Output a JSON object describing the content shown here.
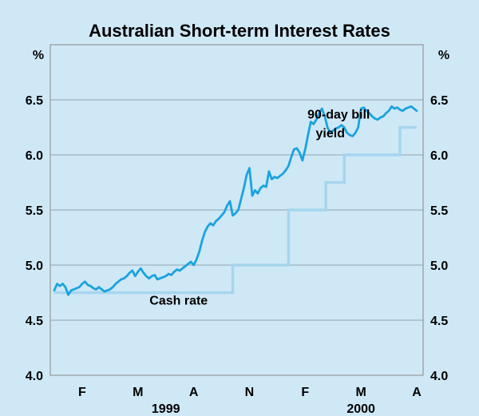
{
  "chart_data": {
    "type": "line",
    "title": "Australian Short-term Interest Rates",
    "ylabel_left": "%",
    "ylabel_right": "%",
    "ylim": [
      4.0,
      7.0
    ],
    "yticks": [
      4.0,
      4.5,
      5.0,
      5.5,
      6.0,
      6.5
    ],
    "ytick_labels": [
      "4.0",
      "4.5",
      "5.0",
      "5.5",
      "6.0",
      "6.5"
    ],
    "xlim": [
      0,
      6.5
    ],
    "xticks": [
      {
        "x": 0.5,
        "label": "F"
      },
      {
        "x": 1.5,
        "label": "M"
      },
      {
        "x": 2.5,
        "label": "A"
      },
      {
        "x": 3.5,
        "label": "N"
      },
      {
        "x": 4.5,
        "label": "F"
      },
      {
        "x": 5.5,
        "label": "M"
      },
      {
        "x": 6.5,
        "label": "A"
      }
    ],
    "year_labels": [
      {
        "x": 2.0,
        "label": "1999"
      },
      {
        "x": 5.5,
        "label": "2000"
      }
    ],
    "annotations": [
      {
        "text": "90-day bill",
        "x": 5.1,
        "y": 6.33
      },
      {
        "text": "yield",
        "x": 4.95,
        "y": 6.16
      },
      {
        "text": "Cash rate",
        "x": 2.23,
        "y": 4.64
      }
    ],
    "series": [
      {
        "name": "90-day bill yield",
        "color": "#1aa3e0",
        "x": [
          0.0,
          0.05,
          0.1,
          0.15,
          0.2,
          0.25,
          0.3,
          0.35,
          0.4,
          0.45,
          0.5,
          0.55,
          0.6,
          0.65,
          0.7,
          0.75,
          0.8,
          0.85,
          0.9,
          0.95,
          1.0,
          1.05,
          1.1,
          1.15,
          1.2,
          1.25,
          1.3,
          1.35,
          1.4,
          1.45,
          1.5,
          1.55,
          1.6,
          1.65,
          1.7,
          1.75,
          1.8,
          1.85,
          1.9,
          1.95,
          2.0,
          2.05,
          2.1,
          2.15,
          2.2,
          2.25,
          2.3,
          2.35,
          2.4,
          2.45,
          2.5,
          2.55,
          2.6,
          2.65,
          2.7,
          2.75,
          2.8,
          2.85,
          2.9,
          2.95,
          3.0,
          3.05,
          3.1,
          3.15,
          3.2,
          3.25,
          3.3,
          3.35,
          3.4,
          3.45,
          3.5,
          3.55,
          3.6,
          3.65,
          3.7,
          3.75,
          3.8,
          3.85,
          3.9,
          3.95,
          4.0,
          4.05,
          4.1,
          4.15,
          4.2,
          4.25,
          4.3,
          4.35,
          4.4,
          4.45,
          4.5,
          4.55,
          4.6,
          4.65,
          4.7,
          4.75,
          4.8,
          4.85,
          4.9,
          4.95,
          5.0,
          5.05,
          5.1,
          5.15,
          5.2,
          5.25,
          5.3,
          5.35,
          5.4,
          5.45,
          5.5,
          5.55,
          5.6,
          5.65,
          5.7,
          5.75,
          5.8,
          5.85,
          5.9,
          5.95,
          6.0,
          6.05,
          6.1,
          6.15,
          6.2,
          6.25,
          6.3,
          6.35,
          6.4,
          6.45,
          6.5
        ],
        "values": [
          4.77,
          4.83,
          4.81,
          4.83,
          4.8,
          4.73,
          4.77,
          4.78,
          4.79,
          4.8,
          4.83,
          4.85,
          4.82,
          4.81,
          4.79,
          4.78,
          4.8,
          4.78,
          4.76,
          4.77,
          4.78,
          4.8,
          4.83,
          4.85,
          4.87,
          4.88,
          4.9,
          4.93,
          4.95,
          4.9,
          4.94,
          4.97,
          4.93,
          4.9,
          4.88,
          4.9,
          4.91,
          4.87,
          4.88,
          4.89,
          4.9,
          4.92,
          4.91,
          4.94,
          4.96,
          4.95,
          4.97,
          4.99,
          5.01,
          5.03,
          5.0,
          5.05,
          5.12,
          5.22,
          5.3,
          5.35,
          5.38,
          5.36,
          5.4,
          5.42,
          5.45,
          5.48,
          5.54,
          5.58,
          5.45,
          5.47,
          5.5,
          5.6,
          5.7,
          5.82,
          5.88,
          5.63,
          5.68,
          5.65,
          5.7,
          5.72,
          5.71,
          5.85,
          5.78,
          5.8,
          5.79,
          5.81,
          5.83,
          5.86,
          5.9,
          5.98,
          6.05,
          6.06,
          6.02,
          5.95,
          6.05,
          6.18,
          6.3,
          6.28,
          6.32,
          6.38,
          6.42,
          6.35,
          6.25,
          6.2,
          6.22,
          6.24,
          6.25,
          6.27,
          6.25,
          6.2,
          6.18,
          6.17,
          6.2,
          6.25,
          6.42,
          6.43,
          6.4,
          6.38,
          6.35,
          6.33,
          6.32,
          6.34,
          6.35,
          6.38,
          6.4,
          6.44,
          6.42,
          6.43,
          6.41,
          6.4,
          6.42,
          6.43,
          6.44,
          6.42,
          6.4
        ]
      },
      {
        "name": "Cash rate",
        "color": "#a6d5ee",
        "steps": [
          {
            "x": 0.0,
            "y": 4.75
          },
          {
            "x": 3.2,
            "y": 4.75
          },
          {
            "x": 3.2,
            "y": 5.0
          },
          {
            "x": 4.2,
            "y": 5.0
          },
          {
            "x": 4.2,
            "y": 5.5
          },
          {
            "x": 4.87,
            "y": 5.5
          },
          {
            "x": 4.87,
            "y": 5.75
          },
          {
            "x": 5.2,
            "y": 5.75
          },
          {
            "x": 5.2,
            "y": 6.0
          },
          {
            "x": 6.2,
            "y": 6.0
          },
          {
            "x": 6.2,
            "y": 6.25
          },
          {
            "x": 6.5,
            "y": 6.25
          }
        ]
      }
    ]
  }
}
